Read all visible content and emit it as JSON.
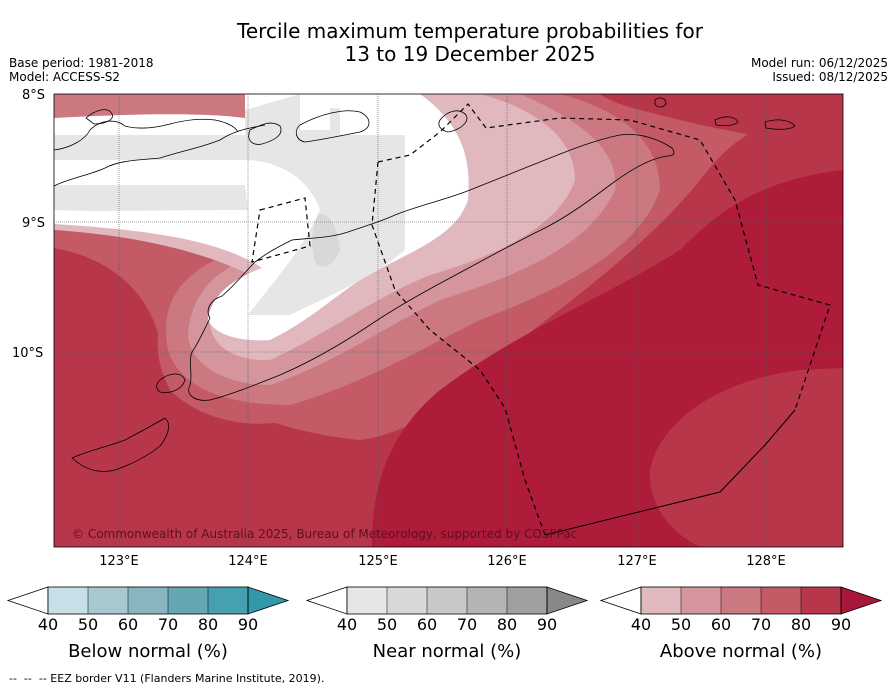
{
  "title_line1": "Tercile maximum temperature probabilities for",
  "title_line2": "13 to 19 December 2025",
  "meta": {
    "base_period": "Base period: 1981-2018",
    "model": "Model: ACCESS-S2",
    "model_run": "Model run: 06/12/2025",
    "issued": "Issued: 08/12/2025"
  },
  "map": {
    "lat_labels": [
      "8°S",
      "9°S",
      "10°S"
    ],
    "lon_labels": [
      "123°E",
      "124°E",
      "125°E",
      "126°E",
      "127°E",
      "128°E"
    ],
    "copyright": "© Commonwealth of Australia 2025, Bureau of Meteorology, supported by COSPPac"
  },
  "colorbars": [
    {
      "name": "below",
      "title": "Below normal (%)",
      "ticks": [
        "40",
        "50",
        "60",
        "70",
        "80",
        "90"
      ],
      "colors": [
        "#ffffff",
        "#c7dfe6",
        "#a8c8cf",
        "#88b6c0",
        "#66a6b2",
        "#45a1b2",
        "#3399aa"
      ]
    },
    {
      "name": "near",
      "title": "Near normal (%)",
      "ticks": [
        "40",
        "50",
        "60",
        "70",
        "80",
        "90"
      ],
      "colors": [
        "#ffffff",
        "#e6e6e6",
        "#d8d8d8",
        "#c8c8c8",
        "#b4b4b4",
        "#a0a0a0",
        "#888888"
      ]
    },
    {
      "name": "above",
      "title": "Above normal (%)",
      "ticks": [
        "40",
        "50",
        "60",
        "70",
        "80",
        "90"
      ],
      "colors": [
        "#ffffff",
        "#e0b8be",
        "#d5959c",
        "#cc7880",
        "#c35a66",
        "#b8364a",
        "#a8163a"
      ]
    }
  ],
  "footer": "--  --  -- EEZ border V11 (Flanders Marine Institute, 2019)."
}
